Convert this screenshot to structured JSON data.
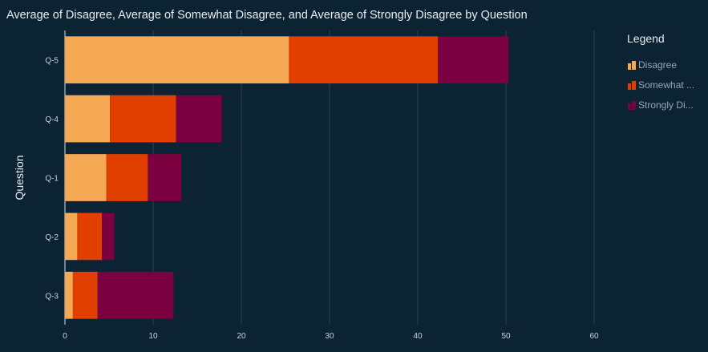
{
  "title": "Average of Disagree, Average of Somewhat Disagree, and Average of Strongly Disagree by Question",
  "legend": {
    "title": "Legend",
    "items": [
      {
        "label": "Disagree",
        "color": "#f6a955"
      },
      {
        "label": "Somewhat ...",
        "color": "#e03f00"
      },
      {
        "label": "Strongly Di...",
        "color": "#7b0040"
      }
    ]
  },
  "chart_data": {
    "type": "bar",
    "orientation": "horizontal",
    "stacked": true,
    "title": "Average of Disagree, Average of Somewhat Disagree, and Average of Strongly Disagree by Question",
    "ylabel": "Question",
    "xlabel": "",
    "categories": [
      "Q-5",
      "Q-4",
      "Q-1",
      "Q-2",
      "Q-3"
    ],
    "series": [
      {
        "name": "Disagree",
        "color": "#f6a955",
        "values": [
          25.4,
          5.1,
          4.7,
          1.4,
          0.9
        ]
      },
      {
        "name": "Somewhat ...",
        "color": "#e03f00",
        "values": [
          16.9,
          7.5,
          4.7,
          2.8,
          2.8
        ]
      },
      {
        "name": "Strongly Di...",
        "color": "#7b0040",
        "values": [
          8.0,
          5.2,
          3.8,
          1.4,
          8.6
        ]
      }
    ],
    "xlim": [
      0,
      60
    ],
    "xticks": [
      "0",
      "10",
      "20",
      "30",
      "40",
      "50",
      "60"
    ],
    "grid": true,
    "legend_position": "right"
  }
}
